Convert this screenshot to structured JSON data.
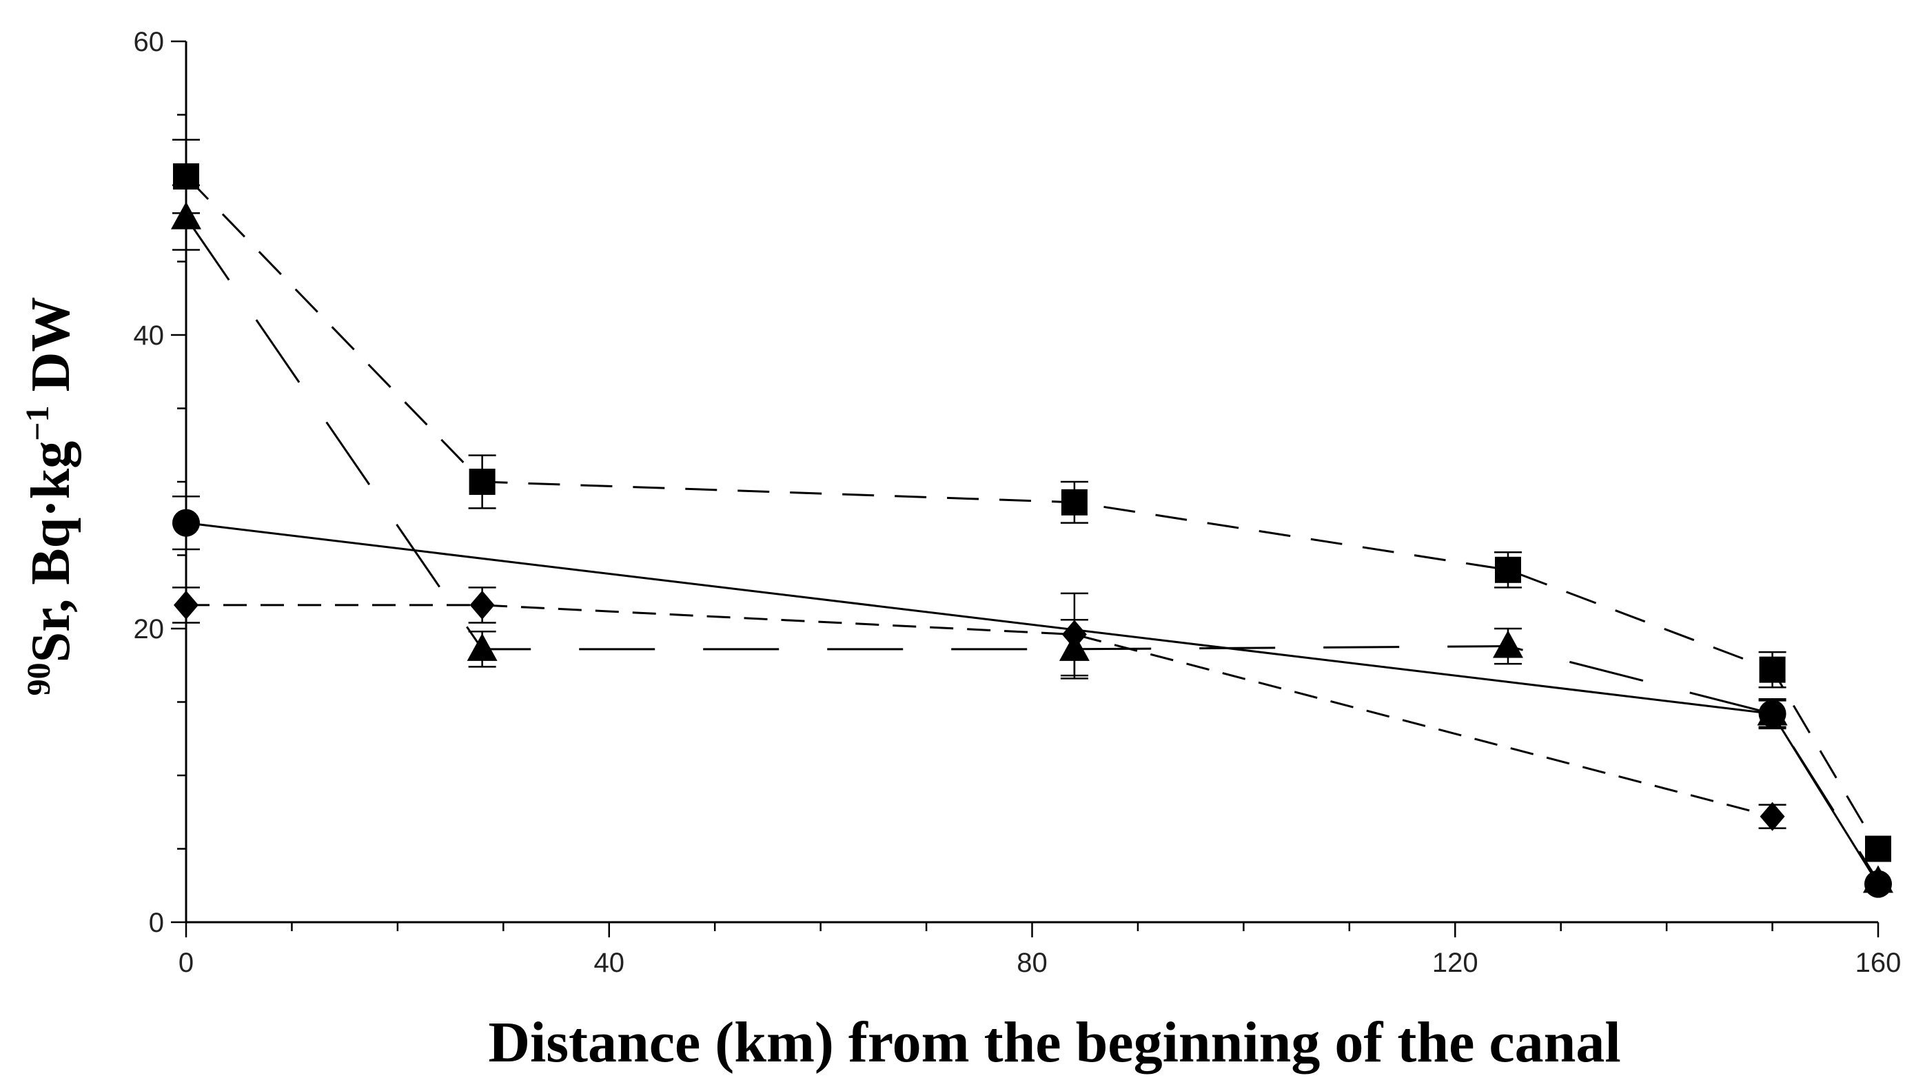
{
  "chart_data": {
    "type": "line",
    "xlabel": "Distance (km) from the beginning of the canal",
    "ylabel": {
      "sup": "90",
      "pre": "Sr, Bq·kg",
      "exp": "−1",
      "post": " DW"
    },
    "xlim": [
      0,
      160
    ],
    "ylim": [
      0,
      60
    ],
    "x_ticks": [
      0,
      40,
      80,
      120,
      160
    ],
    "y_ticks": [
      0,
      20,
      40,
      60
    ],
    "x_minor_step": 10,
    "y_minor_step": 5,
    "grid": false,
    "series": [
      {
        "marker": "square",
        "line_style": "medium-dash",
        "points": [
          {
            "x": 0,
            "y": 50.8,
            "err": 2.5
          },
          {
            "x": 28,
            "y": 30.0,
            "err": 1.8
          },
          {
            "x": 84,
            "y": 28.6,
            "err": 1.4
          },
          {
            "x": 125,
            "y": 24.0,
            "err": 1.2
          },
          {
            "x": 150,
            "y": 17.2,
            "err": 1.2
          },
          {
            "x": 160,
            "y": 5.0,
            "err": 0
          }
        ]
      },
      {
        "marker": "triangle",
        "line_style": "long-dash",
        "points": [
          {
            "x": 0,
            "y": 48.0,
            "err": 2.2
          },
          {
            "x": 28,
            "y": 18.6,
            "err": 1.2
          },
          {
            "x": 84,
            "y": 18.6,
            "err": 2.0
          },
          {
            "x": 125,
            "y": 18.8,
            "err": 1.2
          },
          {
            "x": 150,
            "y": 14.2,
            "err": 0.9
          },
          {
            "x": 160,
            "y": 2.8,
            "err": 0
          }
        ]
      },
      {
        "marker": "circle",
        "line_style": "solid",
        "points": [
          {
            "x": 0,
            "y": 27.2,
            "err": 1.8
          },
          {
            "x": 150,
            "y": 14.2,
            "err": 1.0
          },
          {
            "x": 160,
            "y": 2.6,
            "err": 0
          }
        ]
      },
      {
        "marker": "diamond",
        "line_style": "short-dash",
        "points": [
          {
            "x": 0,
            "y": 21.6,
            "err": 1.2
          },
          {
            "x": 28,
            "y": 21.6,
            "err": 1.2
          },
          {
            "x": 84,
            "y": 19.6,
            "err": 2.8
          },
          {
            "x": 150,
            "y": 7.2,
            "err": 0.8
          }
        ]
      }
    ],
    "colors": {
      "ink": "#000000",
      "background": "#ffffff"
    }
  }
}
